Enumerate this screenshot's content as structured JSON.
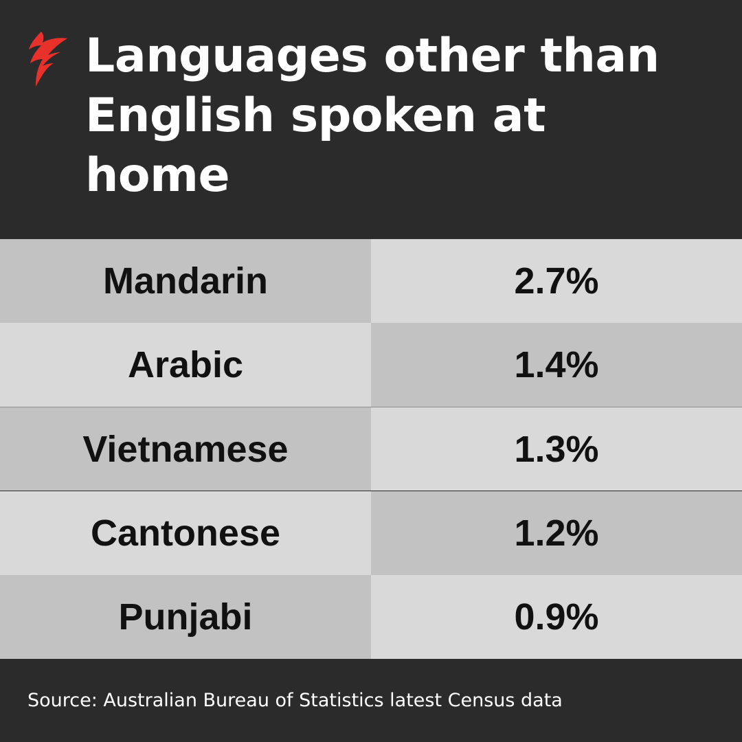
{
  "title": "Languages other than English spoken at home",
  "logo": {
    "icon": "sbs-logo-icon",
    "color": "#e8312a"
  },
  "chart_data": {
    "type": "table",
    "columns": [
      "",
      ""
    ],
    "rows": [
      {
        "language": "Mandarin",
        "value_label": "2.7%",
        "value": 2.7
      },
      {
        "language": "Arabic",
        "value_label": "1.4%",
        "value": 1.4
      },
      {
        "language": "Vietnamese",
        "value_label": "1.3%",
        "value": 1.3
      },
      {
        "language": "Cantonese",
        "value_label": "1.2%",
        "value": 1.2
      },
      {
        "language": "Punjabi",
        "value_label": "0.9%",
        "value": 0.9
      }
    ]
  },
  "source": "Source: Australian Bureau of Statistics latest Census data",
  "colors": {
    "background": "#2b2b2b",
    "cell_dark": "#c2c2c2",
    "cell_light": "#d9d9d9",
    "accent": "#e8312a"
  }
}
